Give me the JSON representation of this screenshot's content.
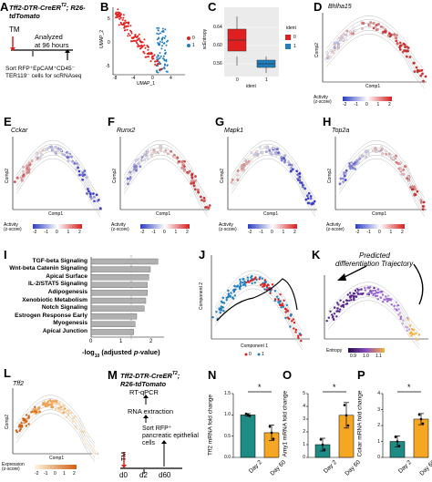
{
  "panelA": {
    "label": "A",
    "title_line1": "Tff2-DTR-CreER",
    "title_sup": "T2",
    "title_rest": "; R26-",
    "title_line2": "tdTomato",
    "tm": "TM",
    "analyzed_line1": "Analyzed",
    "analyzed_line2": "at 96 hours",
    "sort_line1": "Sort RFP⁺EpCAM⁺CD45⁻",
    "sort_line2": "TER119⁻ cells for scRNAseq"
  },
  "panelB": {
    "label": "B",
    "xlabel": "UMAP_1",
    "ylabel": "UMAP_2",
    "legend": [
      "0",
      "1"
    ],
    "xticks": [
      "-8",
      "-4",
      "0",
      "4"
    ],
    "yticks": [
      "5",
      "0",
      "-5"
    ]
  },
  "panelC": {
    "label": "C",
    "ylabel": "scEntropy",
    "xlabel": "ident",
    "legend_title": "ident",
    "legend": [
      "0",
      "1"
    ],
    "xticks": [
      "0",
      "1"
    ],
    "yticks": [
      "0.64",
      "0.60",
      "0.56"
    ]
  },
  "panelD": {
    "label": "D",
    "gene": "Bhlha15",
    "xlabel": "Comp1",
    "ylabel": "Comp2",
    "activity": "Activity",
    "zscore": "(z-score)",
    "scale": [
      "-2",
      "-1",
      "0",
      "1",
      "2"
    ]
  },
  "panelE": {
    "label": "E",
    "gene": "Cckar",
    "xlabel": "Comp1",
    "ylabel": "Comp2",
    "activity": "Activity",
    "zscore": "(z-score)",
    "scale": [
      "-2",
      "-1",
      "0",
      "1",
      "2"
    ]
  },
  "panelF": {
    "label": "F",
    "gene": "Runx2",
    "xlabel": "Comp1",
    "ylabel": "Comp2",
    "activity": "Activity",
    "zscore": "(z-score)",
    "scale": [
      "-2",
      "-1",
      "0",
      "1",
      "2"
    ]
  },
  "panelG": {
    "label": "G",
    "gene": "Mapk1",
    "xlabel": "Comp1",
    "ylabel": "Comp2",
    "activity": "Activity",
    "zscore": "(z-score)",
    "scale": [
      "-2",
      "-1",
      "0",
      "1",
      "2"
    ]
  },
  "panelH": {
    "label": "H",
    "gene": "Top2a",
    "xlabel": "Comp1",
    "ylabel": "Comp2",
    "activity": "Activity",
    "zscore": "(z-score)",
    "scale": [
      "-2",
      "-1",
      "0",
      "1",
      "2"
    ]
  },
  "panelI": {
    "label": "I",
    "xlabel_pre": "-log",
    "xlabel_sub": "10",
    "xlabel_post": " (adjusted ",
    "xlabel_p": "p",
    "xlabel_end": "-value)",
    "xticks": [
      "0",
      "1",
      "2"
    ],
    "chart_data": {
      "type": "bar",
      "categories": [
        "TGF-beta Signaling",
        "Wnt-beta Catenin Signaling",
        "Apical Surface",
        "IL-2/STAT5 Signaling",
        "Adipogenesis",
        "Xenobiotic Metabolism",
        "Notch Signaling",
        "Estrogen Response Early",
        "Myogenesis",
        "Apical Junction"
      ],
      "values": [
        2.2,
        1.95,
        1.9,
        1.85,
        1.85,
        1.8,
        1.75,
        1.5,
        1.45,
        1.4
      ],
      "xlim": [
        0,
        2.4
      ]
    }
  },
  "panelJ": {
    "label": "J",
    "xlabel": "Component 1",
    "ylabel": "Component 2",
    "legend": [
      "0",
      "1"
    ]
  },
  "panelK": {
    "label": "K",
    "annotation_line1": "Predicted",
    "annotation_line2": "differentiation Trajectory",
    "entropy": "Entropy",
    "scale": [
      "0.9",
      "1.0",
      "1.1"
    ]
  },
  "panelL": {
    "label": "L",
    "gene": "Tff2",
    "xlabel": "Comp1",
    "ylabel": "Comp2",
    "expression": "Expression",
    "zscore": "(z-score)",
    "scale": [
      "-2",
      "-1",
      "0",
      "1",
      "2"
    ]
  },
  "panelM": {
    "label": "M",
    "title_line1": "Tff2-DTR-CreER",
    "title_sup": "T2",
    "title_rest": ";",
    "title_line2": "R26-tdTomato",
    "rtq": "RT-qPCR",
    "rna": "RNA extraction",
    "sort_line1": "Sort  RFP⁺",
    "sort_line2": "pancreatic epithelial",
    "sort_line3": "cells",
    "tm": "TM",
    "d0": "d0",
    "d2": "d2",
    "d60": "d60"
  },
  "panelN": {
    "label": "N",
    "ylabel": "Tff2 mRNA fold change",
    "sig": "*",
    "yticks": [
      "0.0",
      "0.5",
      "1.0",
      "1.5"
    ],
    "chart_data": {
      "type": "bar",
      "categories": [
        "Day 2",
        "Day 60"
      ],
      "values": [
        1.0,
        0.58
      ],
      "errors": [
        0.03,
        0.18
      ],
      "ylim": [
        0,
        1.5
      ],
      "colors": [
        "#1e8c84",
        "#f5a623"
      ]
    }
  },
  "panelO": {
    "label": "O",
    "ylabel": "Amy1 mRNA fold change",
    "sig": "*",
    "yticks": [
      "0",
      "1",
      "2",
      "3",
      "4",
      "5"
    ],
    "chart_data": {
      "type": "bar",
      "categories": [
        "Day 2",
        "Day 60"
      ],
      "values": [
        1.0,
        3.3
      ],
      "errors": [
        0.5,
        1.0
      ],
      "ylim": [
        0,
        5
      ],
      "colors": [
        "#1e8c84",
        "#f5a623"
      ]
    }
  },
  "panelP": {
    "label": "P",
    "ylabel": "Cckar mRNA fold change",
    "sig": "*",
    "yticks": [
      "0",
      "1",
      "2",
      "3",
      "4"
    ],
    "chart_data": {
      "type": "bar",
      "categories": [
        "Day 2",
        "Day 60"
      ],
      "values": [
        1.0,
        2.4
      ],
      "errors": [
        0.35,
        0.35
      ],
      "ylim": [
        0,
        4
      ],
      "colors": [
        "#1e8c84",
        "#f5a623"
      ]
    }
  }
}
